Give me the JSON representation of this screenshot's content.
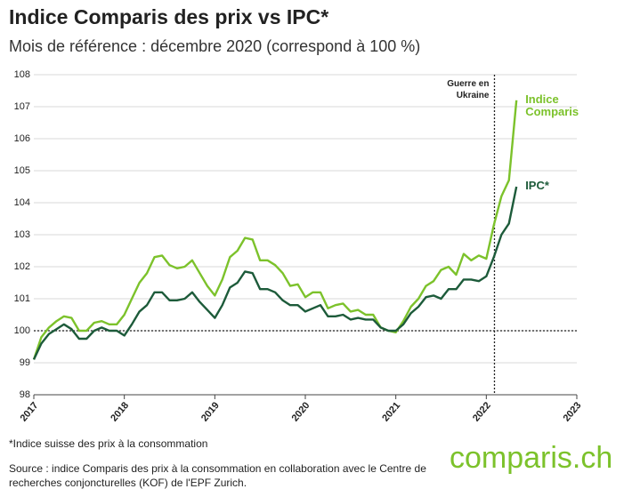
{
  "chart_data": {
    "type": "line",
    "title": "Indice Comparis des prix vs IPC*",
    "subtitle": "Mois de référence : décembre 2020 (correspond à 100 %)",
    "x": [
      2017,
      2017.083,
      2017.167,
      2017.25,
      2017.333,
      2017.417,
      2017.5,
      2017.583,
      2017.667,
      2017.75,
      2017.833,
      2017.917,
      2018,
      2018.083,
      2018.167,
      2018.25,
      2018.333,
      2018.417,
      2018.5,
      2018.583,
      2018.667,
      2018.75,
      2018.833,
      2018.917,
      2019,
      2019.083,
      2019.167,
      2019.25,
      2019.333,
      2019.417,
      2019.5,
      2019.583,
      2019.667,
      2019.75,
      2019.833,
      2019.917,
      2020,
      2020.083,
      2020.167,
      2020.25,
      2020.333,
      2020.417,
      2020.5,
      2020.583,
      2020.667,
      2020.75,
      2020.833,
      2020.917,
      2021,
      2021.083,
      2021.167,
      2021.25,
      2021.333,
      2021.417,
      2021.5,
      2021.583,
      2021.667,
      2021.75,
      2021.833,
      2021.917,
      2022,
      2022.083,
      2022.167,
      2022.25,
      2022.333
    ],
    "series": [
      {
        "name": "Indice Comparis",
        "color": "#7cc22b",
        "values": [
          99.1,
          99.8,
          100.1,
          100.3,
          100.45,
          100.4,
          100.0,
          100.0,
          100.25,
          100.3,
          100.2,
          100.2,
          100.5,
          101.0,
          101.5,
          101.8,
          102.3,
          102.35,
          102.05,
          101.95,
          102.0,
          102.2,
          101.8,
          101.4,
          101.1,
          101.6,
          102.3,
          102.5,
          102.9,
          102.85,
          102.2,
          102.2,
          102.05,
          101.8,
          101.4,
          101.45,
          101.05,
          101.2,
          101.2,
          100.7,
          100.8,
          100.85,
          100.6,
          100.65,
          100.5,
          100.5,
          100.1,
          100.0,
          99.95,
          100.3,
          100.75,
          101.0,
          101.4,
          101.55,
          101.9,
          102.0,
          101.75,
          102.4,
          102.2,
          102.35,
          102.25,
          103.3,
          104.2,
          104.7,
          107.2
        ]
      },
      {
        "name": "IPC*",
        "color": "#1d5b3a",
        "values": [
          99.1,
          99.6,
          99.9,
          100.05,
          100.2,
          100.05,
          99.75,
          99.75,
          100.0,
          100.1,
          100.0,
          100.0,
          99.85,
          100.2,
          100.6,
          100.8,
          101.2,
          101.2,
          100.95,
          100.95,
          101.0,
          101.2,
          100.9,
          100.65,
          100.4,
          100.8,
          101.35,
          101.5,
          101.85,
          101.8,
          101.3,
          101.3,
          101.2,
          100.95,
          100.8,
          100.8,
          100.6,
          100.7,
          100.8,
          100.45,
          100.45,
          100.5,
          100.35,
          100.4,
          100.35,
          100.35,
          100.1,
          100.0,
          100.0,
          100.2,
          100.55,
          100.75,
          101.05,
          101.1,
          101.0,
          101.3,
          101.3,
          101.6,
          101.6,
          101.55,
          101.7,
          102.3,
          103.0,
          103.35,
          104.5
        ]
      }
    ],
    "xlim": [
      2017,
      2023
    ],
    "xticks": [
      2017,
      2018,
      2019,
      2020,
      2021,
      2022,
      2023
    ],
    "ylim": [
      98,
      108
    ],
    "yticks": [
      98,
      99,
      100,
      101,
      102,
      103,
      104,
      105,
      106,
      107,
      108
    ],
    "grid": true,
    "hline": 100,
    "vline": {
      "x": 2022.09,
      "label": "Guerre en Ukraine"
    },
    "footnote": "*Indice suisse des prix à la consommation",
    "source": "Source : indice Comparis des prix à la consommation en collaboration avec le Centre de recherches conjoncturelles (KOF) de l'EPF Zurich.",
    "logo": "comparis.ch"
  }
}
